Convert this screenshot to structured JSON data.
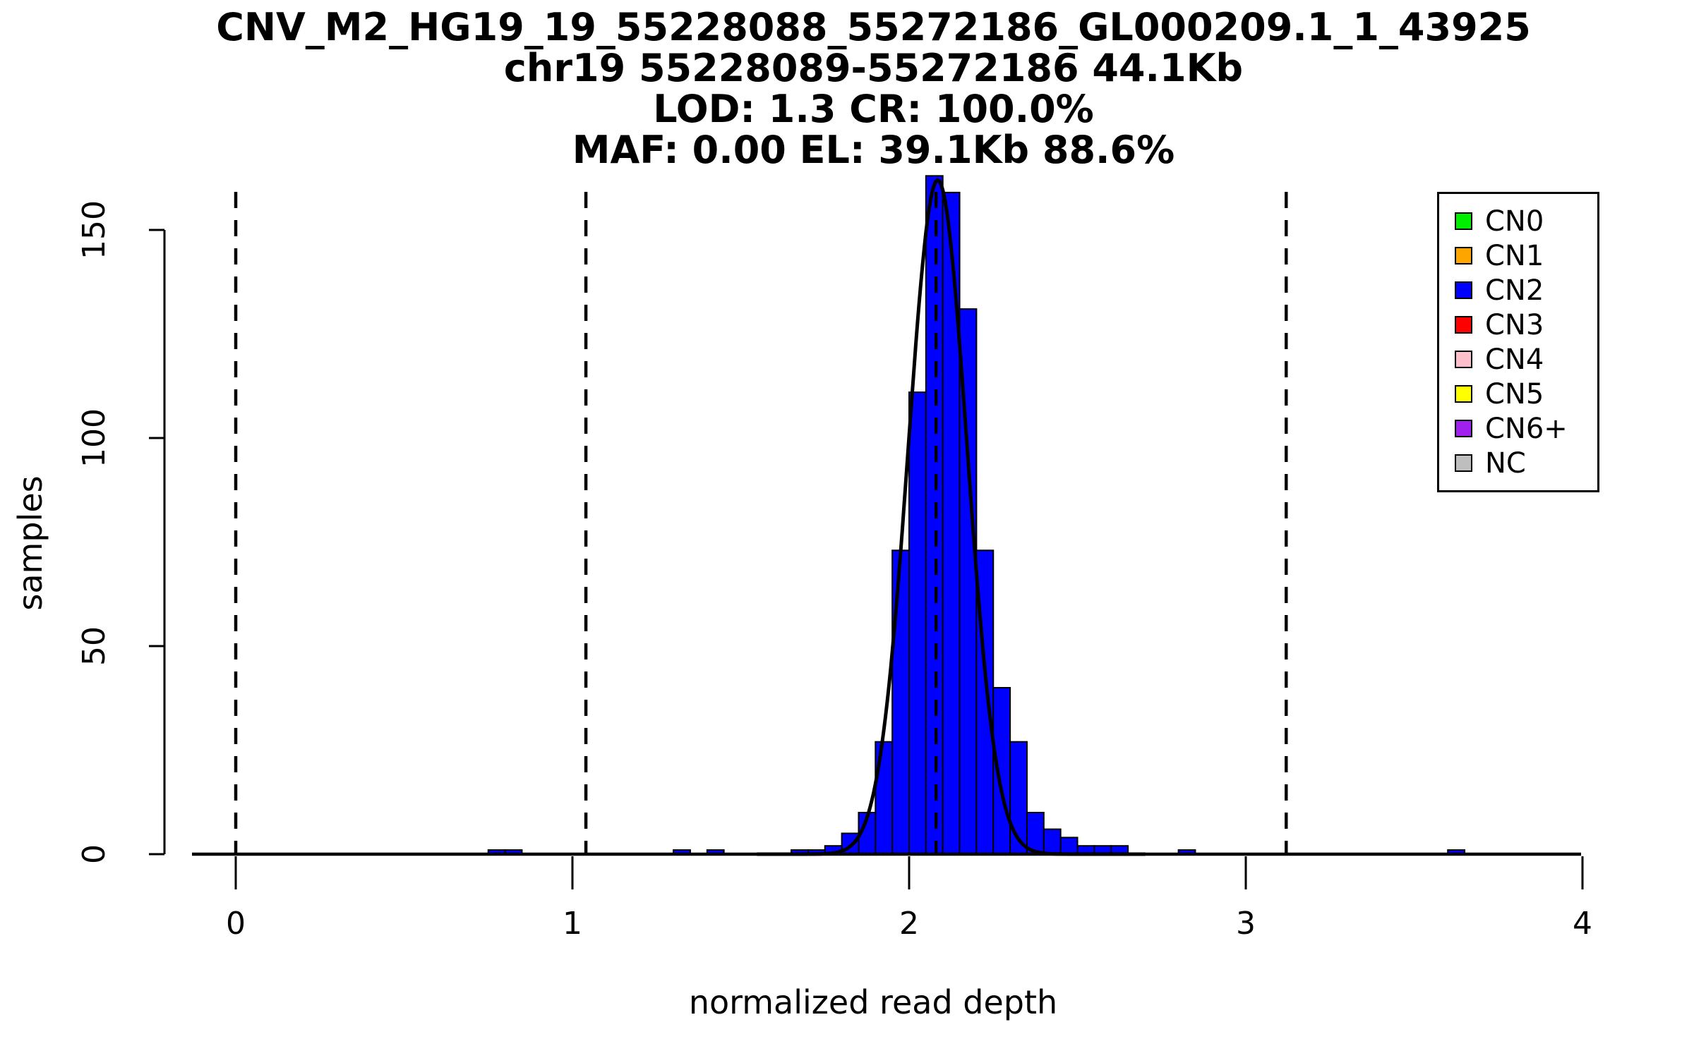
{
  "chart_data": {
    "type": "bar",
    "subtype": "histogram",
    "titles": [
      "CNV_M2_HG19_19_55228088_55272186_GL000209.1_1_43925",
      "chr19 55228089-55272186 44.1Kb",
      "LOD: 1.3 CR: 100.0%",
      "MAF: 0.00 EL: 39.1Kb 88.6%"
    ],
    "xlabel": "normalized read depth",
    "ylabel": "samples",
    "xlim": [
      -0.15,
      4.15
    ],
    "ylim": [
      0,
      165
    ],
    "xticks": [
      0,
      1,
      2,
      3,
      4
    ],
    "yticks": [
      0,
      50,
      100,
      150
    ],
    "grid": false,
    "bin_width": 0.05,
    "bar_color": "#0000FF",
    "bar_border_color": "#000000",
    "bins": [
      {
        "x": 0.75,
        "count": 1
      },
      {
        "x": 0.8,
        "count": 1
      },
      {
        "x": 1.3,
        "count": 1
      },
      {
        "x": 1.4,
        "count": 1
      },
      {
        "x": 1.65,
        "count": 1
      },
      {
        "x": 1.7,
        "count": 1
      },
      {
        "x": 1.75,
        "count": 2
      },
      {
        "x": 1.8,
        "count": 5
      },
      {
        "x": 1.85,
        "count": 10
      },
      {
        "x": 1.9,
        "count": 27
      },
      {
        "x": 1.95,
        "count": 73
      },
      {
        "x": 2.0,
        "count": 111
      },
      {
        "x": 2.05,
        "count": 163
      },
      {
        "x": 2.1,
        "count": 159
      },
      {
        "x": 2.15,
        "count": 131
      },
      {
        "x": 2.2,
        "count": 73
      },
      {
        "x": 2.25,
        "count": 40
      },
      {
        "x": 2.3,
        "count": 27
      },
      {
        "x": 2.35,
        "count": 10
      },
      {
        "x": 2.4,
        "count": 6
      },
      {
        "x": 2.45,
        "count": 4
      },
      {
        "x": 2.5,
        "count": 2
      },
      {
        "x": 2.55,
        "count": 2
      },
      {
        "x": 2.6,
        "count": 2
      },
      {
        "x": 2.8,
        "count": 1
      },
      {
        "x": 3.6,
        "count": 1
      }
    ],
    "dashed_lines_x": [
      0.0,
      1.04,
      2.08,
      3.12
    ],
    "dashed_line_color": "#000000",
    "fit_curve": {
      "type": "gaussian",
      "mean": 2.085,
      "sd": 0.087,
      "amplitude": 162,
      "color": "#000000"
    },
    "legend": {
      "position": "top-right",
      "items": [
        {
          "label": "CN0",
          "color": "#00EE00"
        },
        {
          "label": "CN1",
          "color": "#FFA500"
        },
        {
          "label": "CN2",
          "color": "#0000FF"
        },
        {
          "label": "CN3",
          "color": "#FF0000"
        },
        {
          "label": "CN4",
          "color": "#FFC0CB"
        },
        {
          "label": "CN5",
          "color": "#FFFF00"
        },
        {
          "label": "CN6+",
          "color": "#A020F0"
        },
        {
          "label": "NC",
          "color": "#BEBEBE"
        }
      ]
    }
  }
}
